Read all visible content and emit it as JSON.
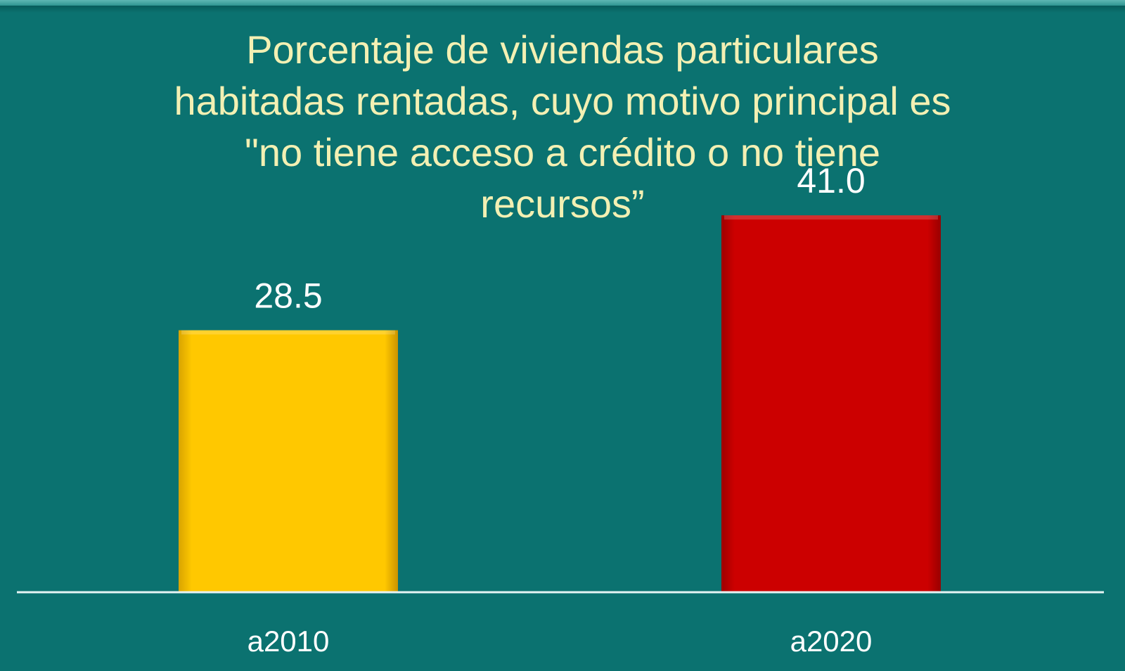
{
  "chart_data": {
    "type": "bar",
    "title": "Porcentaje de viviendas particulares\nhabitadas rentadas, cuyo motivo principal es\n\"no tiene acceso a crédito o no tiene\nrecursos”",
    "categories": [
      "a2010",
      "a2020"
    ],
    "values": [
      28.5,
      41.0
    ],
    "value_labels": [
      "28.5",
      "41.0"
    ],
    "colors": [
      "#ffc800",
      "#cc0000"
    ],
    "xlabel": "",
    "ylabel": "",
    "ylim": [
      0,
      50
    ],
    "grid": false,
    "legend": "none"
  },
  "colors": {
    "background": "#0b7270",
    "title": "#f3f0b3",
    "axis": "#e6f4f4",
    "label": "#ffffff"
  }
}
